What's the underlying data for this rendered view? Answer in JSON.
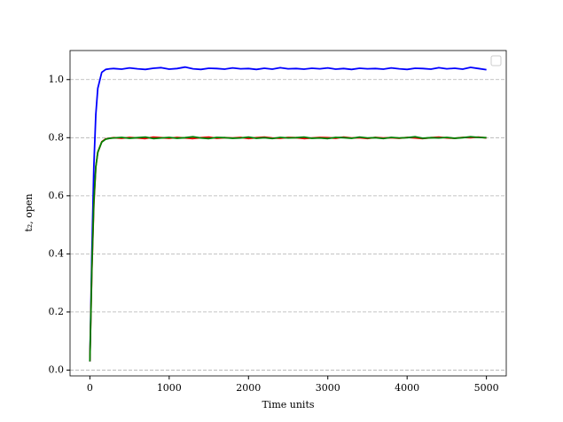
{
  "chart_data": {
    "type": "line",
    "xlabel": "Time units",
    "ylabel": "t₂, open",
    "x": [
      0,
      25,
      50,
      75,
      100,
      150,
      200,
      250,
      300,
      400,
      500,
      600,
      700,
      800,
      900,
      1000,
      1100,
      1200,
      1300,
      1400,
      1500,
      1600,
      1700,
      1800,
      1900,
      2000,
      2100,
      2200,
      2300,
      2400,
      2500,
      2600,
      2700,
      2800,
      2900,
      3000,
      3100,
      3200,
      3300,
      3400,
      3500,
      3600,
      3700,
      3800,
      3900,
      4000,
      4100,
      4200,
      4300,
      4400,
      4500,
      4600,
      4700,
      4800,
      4900,
      5000
    ],
    "series": [
      {
        "color": "#0000ff",
        "values": [
          0.03,
          0.4,
          0.7,
          0.88,
          0.97,
          1.025,
          1.035,
          1.037,
          1.038,
          1.036,
          1.04,
          1.037,
          1.035,
          1.039,
          1.041,
          1.036,
          1.038,
          1.043,
          1.037,
          1.035,
          1.039,
          1.038,
          1.036,
          1.04,
          1.037,
          1.038,
          1.035,
          1.039,
          1.036,
          1.041,
          1.037,
          1.038,
          1.036,
          1.039,
          1.037,
          1.04,
          1.036,
          1.038,
          1.035,
          1.039,
          1.037,
          1.038,
          1.036,
          1.04,
          1.037,
          1.035,
          1.039,
          1.038,
          1.036,
          1.041,
          1.037,
          1.039,
          1.036,
          1.042,
          1.038,
          1.034
        ]
      },
      {
        "color": "#ff0000",
        "values": [
          0.03,
          0.34,
          0.57,
          0.7,
          0.75,
          0.786,
          0.796,
          0.798,
          0.8,
          0.798,
          0.801,
          0.799,
          0.797,
          0.802,
          0.8,
          0.798,
          0.801,
          0.799,
          0.797,
          0.8,
          0.802,
          0.798,
          0.8,
          0.799,
          0.801,
          0.797,
          0.8,
          0.802,
          0.799,
          0.798,
          0.801,
          0.8,
          0.797,
          0.799,
          0.801,
          0.8,
          0.798,
          0.802,
          0.799,
          0.8,
          0.797,
          0.801,
          0.799,
          0.8,
          0.798,
          0.801,
          0.799,
          0.797,
          0.8,
          0.802,
          0.799,
          0.798,
          0.801,
          0.8,
          0.802,
          0.799
        ]
      },
      {
        "color": "#008000",
        "values": [
          0.03,
          0.35,
          0.58,
          0.7,
          0.75,
          0.785,
          0.795,
          0.798,
          0.799,
          0.801,
          0.798,
          0.8,
          0.802,
          0.797,
          0.799,
          0.801,
          0.798,
          0.8,
          0.803,
          0.799,
          0.797,
          0.801,
          0.8,
          0.798,
          0.799,
          0.802,
          0.798,
          0.8,
          0.797,
          0.801,
          0.799,
          0.8,
          0.802,
          0.798,
          0.799,
          0.797,
          0.801,
          0.8,
          0.798,
          0.802,
          0.799,
          0.8,
          0.797,
          0.801,
          0.799,
          0.8,
          0.803,
          0.798,
          0.8,
          0.799,
          0.801,
          0.798,
          0.8,
          0.803,
          0.801,
          0.8
        ]
      }
    ],
    "xlim": [
      -250,
      5250
    ],
    "ylim": [
      -0.02,
      1.1
    ],
    "xticks": [
      0,
      1000,
      2000,
      3000,
      4000,
      5000
    ],
    "yticks": [
      {
        "value": 0,
        "label": "0.0"
      },
      0.2,
      0.4,
      0.6,
      0.8,
      {
        "value": 1,
        "label": "1.0"
      }
    ],
    "grid": "y"
  }
}
